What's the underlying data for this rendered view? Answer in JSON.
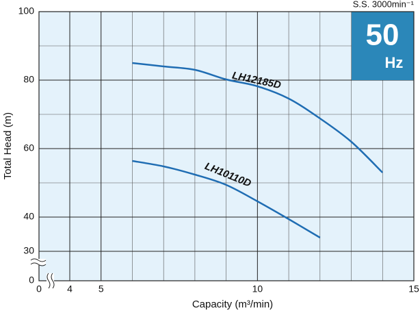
{
  "chart_data": {
    "type": "line",
    "annotation": "S.S. 3000min⁻¹",
    "badge": {
      "number": "50",
      "unit": "Hz"
    },
    "xlabel": "Capacity (m³/min)",
    "ylabel": "Total Head (m)",
    "x": [
      6,
      7,
      8,
      9,
      10,
      11,
      12,
      13,
      14
    ],
    "series": [
      {
        "name": "LH12185D",
        "color": "#1f6db3",
        "values": [
          85,
          84,
          83,
          80.2,
          78.2,
          74.6,
          68.8,
          62,
          53
        ]
      },
      {
        "name": "LH10110D",
        "color": "#1f6db3",
        "values": [
          56.4,
          54.8,
          52.4,
          49.4,
          44.6,
          39.4,
          34,
          null,
          null
        ]
      }
    ],
    "xlim": [
      0,
      15
    ],
    "xticks": [
      0,
      4,
      5,
      10,
      15
    ],
    "xminor": [
      6,
      7,
      8,
      9,
      11,
      12,
      13,
      14
    ],
    "xbreak": [
      0,
      4
    ],
    "ylim": [
      0,
      100
    ],
    "yticks": [
      0,
      30,
      40,
      60,
      80,
      100
    ],
    "yminor": [
      50,
      70,
      90
    ],
    "ybreak": [
      0,
      30
    ],
    "grid": true
  }
}
